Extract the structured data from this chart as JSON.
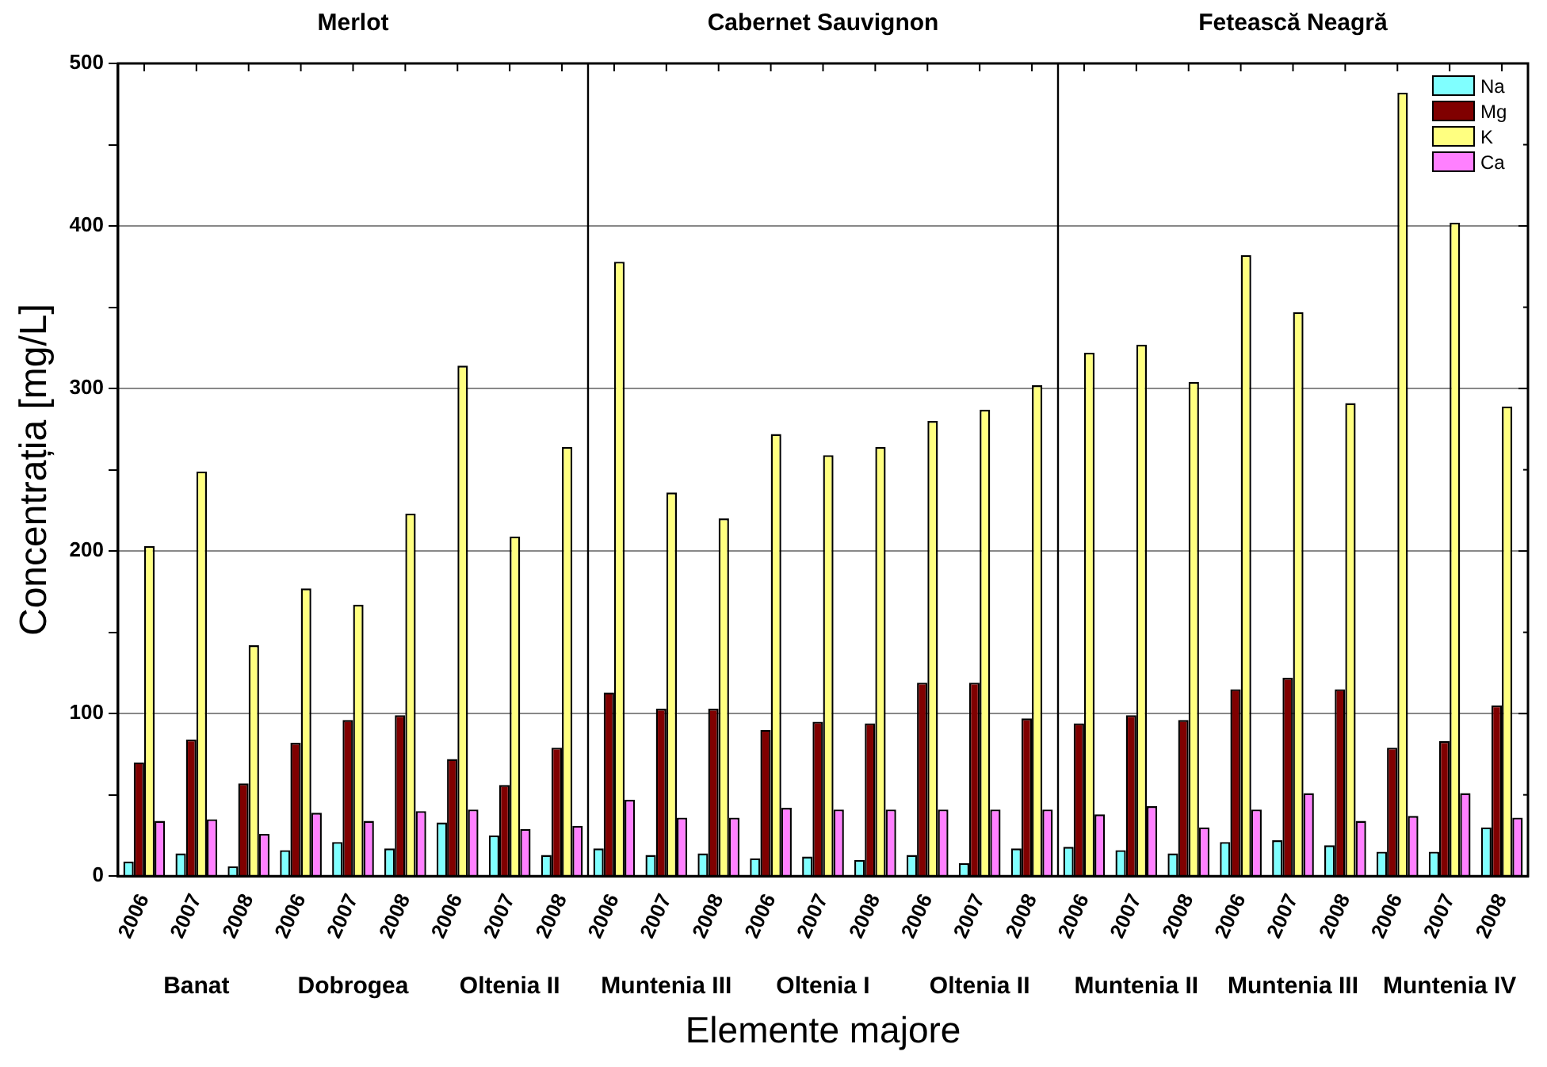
{
  "chart_data": {
    "type": "bar",
    "categories": [
      "2006",
      "2007",
      "2008",
      "2006",
      "2007",
      "2008",
      "2006",
      "2007",
      "2008",
      "2006",
      "2007",
      "2008",
      "2006",
      "2007",
      "2008",
      "2006",
      "2007",
      "2008",
      "2006",
      "2007",
      "2008",
      "2006",
      "2007",
      "2008",
      "2006",
      "2007",
      "2008"
    ],
    "series": [
      {
        "name": "Na",
        "color": "#80ffff",
        "values": [
          9,
          14,
          6,
          16,
          21,
          17,
          33,
          25,
          13,
          17,
          13,
          14,
          11,
          12,
          10,
          13,
          8,
          17,
          18,
          16,
          14,
          21,
          22,
          19,
          15,
          15,
          30
        ]
      },
      {
        "name": "Mg",
        "color": "#800000",
        "values": [
          70,
          84,
          57,
          82,
          96,
          99,
          72,
          56,
          79,
          113,
          103,
          103,
          90,
          95,
          94,
          119,
          119,
          97,
          94,
          99,
          96,
          115,
          122,
          115,
          79,
          83,
          105
        ]
      },
      {
        "name": "K",
        "color": "#ffff80",
        "values": [
          203,
          249,
          142,
          177,
          167,
          223,
          314,
          209,
          264,
          378,
          236,
          220,
          272,
          259,
          264,
          280,
          287,
          302,
          322,
          327,
          304,
          382,
          347,
          291,
          482,
          402,
          289
        ]
      },
      {
        "name": "Ca",
        "color": "#ff80ff",
        "values": [
          34,
          35,
          26,
          39,
          34,
          40,
          41,
          29,
          31,
          47,
          36,
          36,
          42,
          41,
          41,
          41,
          41,
          41,
          38,
          43,
          30,
          41,
          51,
          34,
          37,
          51,
          36
        ]
      }
    ],
    "xlabel": "Elemente majore",
    "ylabel": "Concentrația [mg/L]",
    "annotations": [
      "Merlot",
      "Cabernet Sauvignon",
      "Fetească Neagră",
      "Banat",
      "Dobrogea",
      "Oltenia II",
      "Muntenia III",
      "Oltenia I",
      "Oltenia II",
      "Muntenia II",
      "Muntenia III",
      "Muntenia IV"
    ],
    "ylim": [
      0,
      500
    ],
    "yticks": [
      0,
      {
        "value": 50,
        "label": null
      },
      100,
      {
        "value": 150,
        "label": null
      },
      200,
      {
        "value": 250,
        "label": null
      },
      300,
      {
        "value": 350,
        "label": null
      },
      400,
      {
        "value": 450,
        "label": null
      },
      500
    ],
    "grid": "y",
    "legend": "top right"
  }
}
